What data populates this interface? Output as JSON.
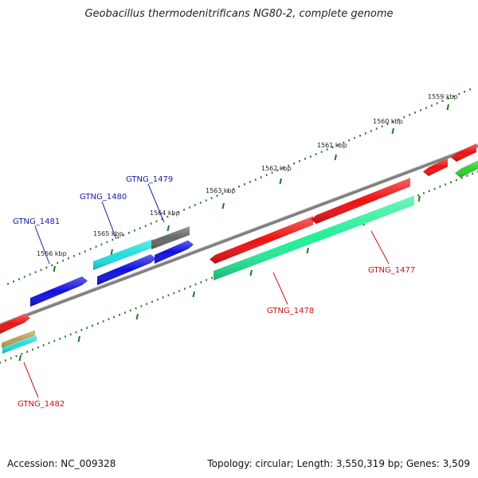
{
  "header": {
    "title": "Geobacillus thermodenitrificans NG80-2, complete genome"
  },
  "footer": {
    "accession": "Accession: NC_009328",
    "summary": "Topology: circular; Length: 3,550,319 bp; Genes: 3,509"
  },
  "colors": {
    "backbone": "#808080",
    "ticks": "#1e7a1e",
    "label_forward": "#1a1aa8",
    "label_reverse": "#cc1111"
  },
  "ticks": [
    {
      "label": "1559 kbp"
    },
    {
      "label": "1560 kbp"
    },
    {
      "label": "1561 kbp"
    },
    {
      "label": "1562 kbp"
    },
    {
      "label": "1563 kbp"
    },
    {
      "label": "1564 kbp"
    },
    {
      "label": "1565 kbp"
    },
    {
      "label": "1566 kbp"
    }
  ],
  "genes": [
    {
      "name": "gtng-1481",
      "label": "GTNG_1481",
      "color": "#1010dd",
      "strand": "forward"
    },
    {
      "name": "gtng-1480",
      "label": "GTNG_1480",
      "color": "#22dddd",
      "strand": "forward"
    },
    {
      "name": "gtng-1479",
      "label": "GTNG_1479",
      "color": "#666666",
      "strand": "forward"
    },
    {
      "name": "gtng-1478",
      "label": "GTNG_1478",
      "color": "#22ee99",
      "strand": "reverse"
    },
    {
      "name": "gtng-1477",
      "label": "GTNG_1477",
      "color": "#ee1111",
      "strand": "reverse"
    },
    {
      "name": "gtng-1482",
      "label": "GTNG_1482",
      "color": "#ee1111",
      "strand": "reverse"
    }
  ]
}
